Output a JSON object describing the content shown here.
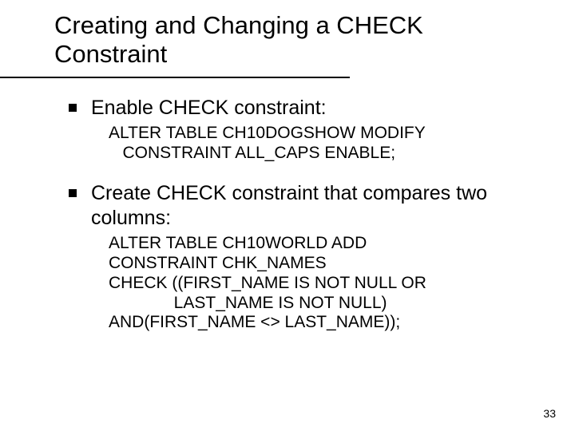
{
  "colors": {
    "background": "#ffffff",
    "text": "#000000",
    "rule": "#000000",
    "bullet": "#000000"
  },
  "typography": {
    "title_fontsize": 31,
    "bullet_fontsize": 25,
    "code_fontsize": 21,
    "pagenum_fontsize": 14,
    "font_family": "Arial"
  },
  "title": "Creating and Changing a CHECK Constraint",
  "bullets": [
    {
      "text": "Enable CHECK constraint:",
      "code": "ALTER TABLE CH10DOGSHOW MODIFY\n   CONSTRAINT ALL_CAPS ENABLE;"
    },
    {
      "text": "Create CHECK constraint that compares two columns:",
      "code": "ALTER TABLE CH10WORLD ADD\nCONSTRAINT CHK_NAMES\nCHECK ((FIRST_NAME IS NOT NULL OR\n              LAST_NAME IS NOT NULL)\nAND(FIRST_NAME <> LAST_NAME));"
    }
  ],
  "page_number": "33"
}
